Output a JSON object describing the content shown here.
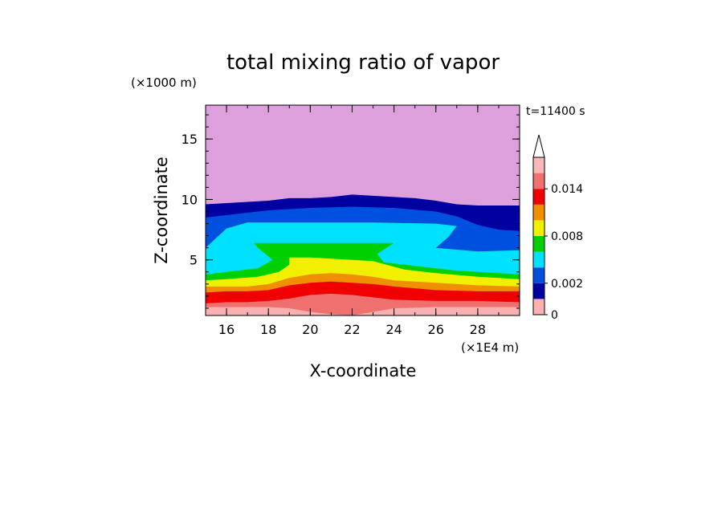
{
  "chart_data": {
    "type": "heatmap",
    "title": "total mixing ratio of vapor",
    "xlabel": "X-coordinate",
    "ylabel": "Z-coordinate",
    "x_unit": "(×1E4 m)",
    "y_unit": "(×1000 m)",
    "time_label": "t=11400 s",
    "xlim": [
      15,
      30
    ],
    "ylim": [
      0.4,
      17.8
    ],
    "x_ticks": [
      "16",
      "18",
      "20",
      "22",
      "24",
      "26",
      "28"
    ],
    "y_ticks": [
      "5",
      "10",
      "15"
    ],
    "colorbar": {
      "levels": [
        0,
        0.001,
        0.002,
        0.004,
        0.006,
        0.008,
        0.01,
        0.012,
        0.014,
        0.016
      ],
      "tick_labels": [
        "0",
        "0.002",
        "0.008",
        "0.014"
      ],
      "colors": [
        "#ffb0b0",
        "#0000a0",
        "#0050e0",
        "#00e0ff",
        "#00d000",
        "#f0f000",
        "#f09000",
        "#f00000",
        "#f07070",
        "#f8b8b8"
      ],
      "extend": "max",
      "above_color": "#e0a0e0"
    },
    "layers": [
      {
        "level_min": 0.0,
        "color": "#dda0dd",
        "top": [
          [
            15,
            17.8
          ],
          [
            30,
            17.8
          ]
        ]
      },
      {
        "level_min": 0.001,
        "color": "#0000a0",
        "top": [
          [
            15,
            9.6
          ],
          [
            16,
            9.7
          ],
          [
            17,
            9.8
          ],
          [
            18,
            9.9
          ],
          [
            19,
            10.1
          ],
          [
            20,
            10.1
          ],
          [
            21,
            10.2
          ],
          [
            22,
            10.4
          ],
          [
            23,
            10.3
          ],
          [
            24,
            10.2
          ],
          [
            25,
            10.1
          ],
          [
            26,
            9.9
          ],
          [
            27,
            9.6
          ],
          [
            28,
            9.5
          ],
          [
            30,
            9.5
          ]
        ]
      },
      {
        "level_min": 0.0015,
        "color": "#0050e0",
        "top": [
          [
            15,
            8.5
          ],
          [
            16,
            8.7
          ],
          [
            17,
            8.9
          ],
          [
            18,
            9.1
          ],
          [
            19,
            9.2
          ],
          [
            20,
            9.3
          ],
          [
            22,
            9.4
          ],
          [
            24,
            9.3
          ],
          [
            26,
            9.0
          ],
          [
            27,
            8.6
          ],
          [
            28,
            7.9
          ],
          [
            29,
            7.5
          ],
          [
            30,
            7.4
          ]
        ]
      },
      {
        "level_min": 0.002,
        "color": "#00e0ff",
        "top": [
          [
            15,
            6.0
          ],
          [
            15.5,
            6.8
          ],
          [
            16,
            7.6
          ],
          [
            17,
            8.1
          ],
          [
            20,
            8.1
          ],
          [
            23,
            8.1
          ],
          [
            26,
            8.0
          ],
          [
            27,
            7.8
          ],
          [
            26.6,
            6.9
          ],
          [
            26,
            6.0
          ],
          [
            28,
            5.7
          ],
          [
            30,
            5.8
          ]
        ]
      },
      {
        "level_min": 0.004,
        "color": "#00d000",
        "top": [
          [
            15,
            3.8
          ],
          [
            16,
            4.0
          ],
          [
            17.5,
            4.3
          ],
          [
            18.2,
            5.0
          ],
          [
            17.5,
            6.0
          ],
          [
            17.3,
            6.4
          ],
          [
            20,
            6.4
          ],
          [
            22,
            6.4
          ],
          [
            24,
            6.4
          ],
          [
            23.2,
            5.5
          ],
          [
            23.5,
            4.8
          ],
          [
            25,
            4.5
          ],
          [
            27,
            4.1
          ],
          [
            30,
            3.8
          ]
        ]
      },
      {
        "level_min": 0.006,
        "color": "#f0f000",
        "top": [
          [
            15,
            3.3
          ],
          [
            16,
            3.4
          ],
          [
            17.5,
            3.6
          ],
          [
            18.5,
            4.0
          ],
          [
            19,
            4.6
          ],
          [
            19,
            5.2
          ],
          [
            20,
            5.2
          ],
          [
            21,
            5.1
          ],
          [
            22,
            5.0
          ],
          [
            23,
            4.9
          ],
          [
            24.5,
            4.2
          ],
          [
            26,
            3.9
          ],
          [
            28,
            3.6
          ],
          [
            30,
            3.4
          ]
        ]
      },
      {
        "level_min": 0.008,
        "color": "#f09000",
        "top": [
          [
            15,
            2.8
          ],
          [
            16,
            2.8
          ],
          [
            17,
            2.8
          ],
          [
            18,
            3.0
          ],
          [
            19,
            3.5
          ],
          [
            20,
            3.8
          ],
          [
            21,
            3.9
          ],
          [
            22,
            3.8
          ],
          [
            23,
            3.6
          ],
          [
            24,
            3.3
          ],
          [
            26,
            3.1
          ],
          [
            28,
            2.9
          ],
          [
            30,
            2.8
          ]
        ]
      },
      {
        "level_min": 0.01,
        "color": "#f00000",
        "top": [
          [
            15,
            2.3
          ],
          [
            16,
            2.4
          ],
          [
            17,
            2.4
          ],
          [
            18,
            2.5
          ],
          [
            19,
            2.9
          ],
          [
            20,
            3.1
          ],
          [
            21,
            3.2
          ],
          [
            22,
            3.1
          ],
          [
            23,
            3.0
          ],
          [
            24,
            2.8
          ],
          [
            26,
            2.5
          ],
          [
            28,
            2.4
          ],
          [
            30,
            2.4
          ]
        ]
      },
      {
        "level_min": 0.012,
        "color": "#f07070",
        "top": [
          [
            15,
            1.4
          ],
          [
            16,
            1.5
          ],
          [
            17,
            1.5
          ],
          [
            18,
            1.6
          ],
          [
            19,
            1.8
          ],
          [
            20,
            2.1
          ],
          [
            21,
            2.2
          ],
          [
            22,
            2.1
          ],
          [
            23,
            1.9
          ],
          [
            24,
            1.7
          ],
          [
            26,
            1.6
          ],
          [
            28,
            1.6
          ],
          [
            30,
            1.5
          ]
        ]
      },
      {
        "level_min": 0.014,
        "color": "#f8b0b0",
        "top": [
          [
            15,
            1.1
          ],
          [
            16,
            1.1
          ],
          [
            18,
            1.1
          ],
          [
            19,
            1.0
          ],
          [
            20,
            0.7
          ],
          [
            21,
            0.5
          ],
          [
            22,
            0.4
          ],
          [
            23,
            0.7
          ],
          [
            24,
            1.0
          ],
          [
            26,
            1.1
          ],
          [
            30,
            1.1
          ]
        ]
      }
    ]
  }
}
